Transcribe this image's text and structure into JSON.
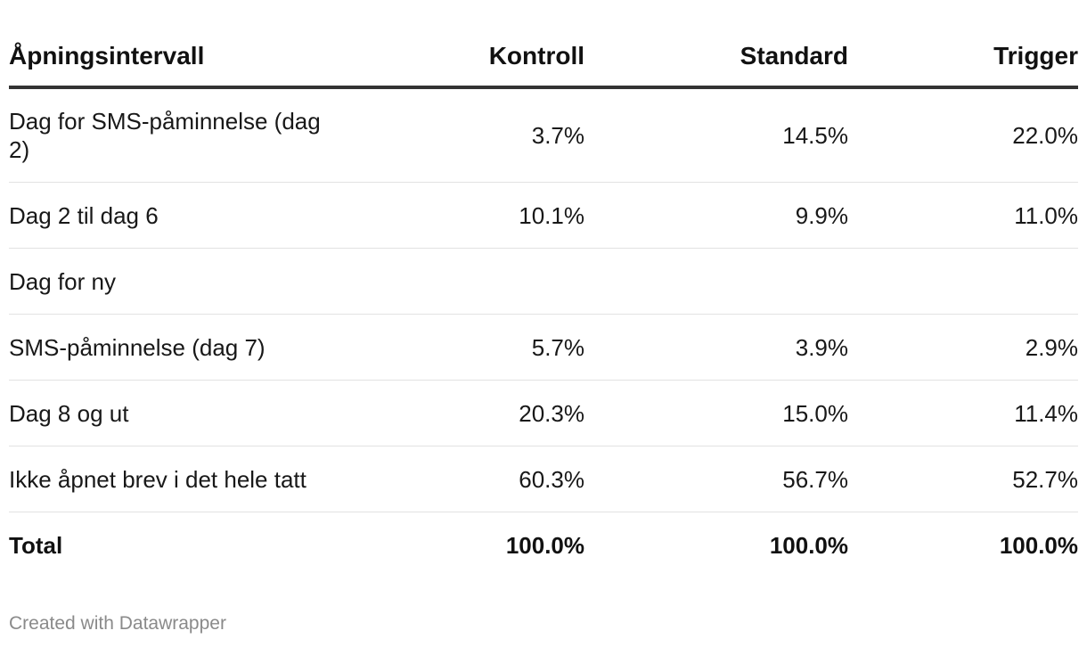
{
  "chart_data": {
    "type": "table",
    "columns": [
      "Åpningsintervall",
      "Kontroll",
      "Standard",
      "Trigger"
    ],
    "rows": [
      {
        "label": "Dag for SMS-påminnelse (dag 2)",
        "values": [
          "3.7%",
          "14.5%",
          "22.0%"
        ]
      },
      {
        "label": "Dag 2 til dag 6",
        "values": [
          "10.1%",
          "9.9%",
          "11.0%"
        ]
      },
      {
        "label": "Dag for ny",
        "values": [
          "",
          "",
          ""
        ]
      },
      {
        "label": "SMS-påminnelse (dag 7)",
        "values": [
          "5.7%",
          "3.9%",
          "2.9%"
        ]
      },
      {
        "label": "Dag 8 og ut",
        "values": [
          "20.3%",
          "15.0%",
          "11.4%"
        ]
      },
      {
        "label": "Ikke åpnet brev i det hele tatt",
        "values": [
          "60.3%",
          "56.7%",
          "52.7%"
        ]
      }
    ],
    "total": {
      "label": "Total",
      "values": [
        "100.0%",
        "100.0%",
        "100.0%"
      ]
    }
  },
  "footer": {
    "credit": "Created with Datawrapper"
  },
  "colors": {
    "text": "#181818",
    "header_rule": "#333333",
    "row_rule": "#e2e2e2",
    "credit": "#8a8a8a"
  }
}
